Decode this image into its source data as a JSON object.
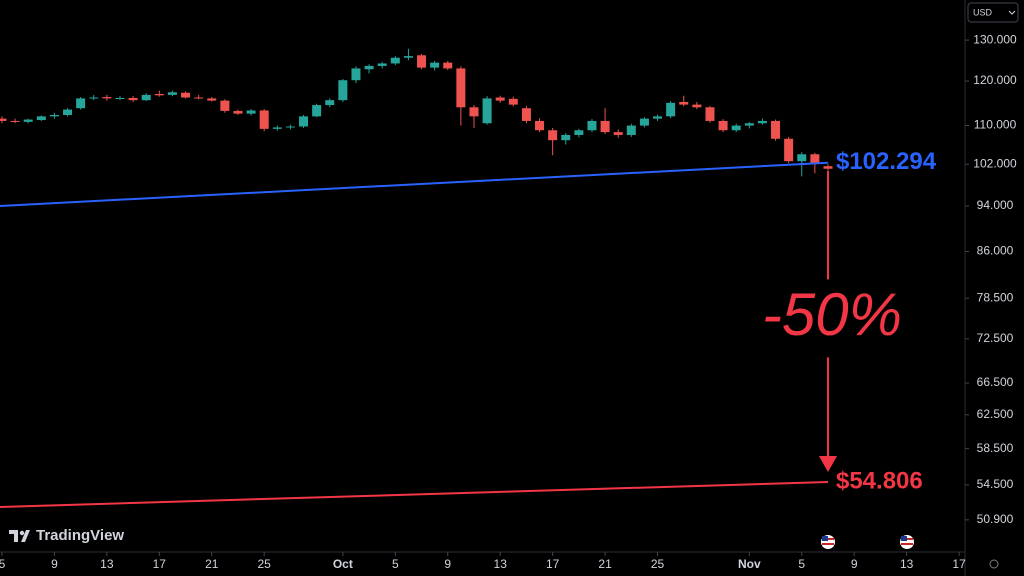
{
  "chart_data": {
    "type": "candlestick",
    "currency": "USD",
    "brand": "TradingView",
    "annotation": "-50%",
    "up_color": "#26a69a",
    "down_color": "#ef5350",
    "log_scale": true,
    "xlim": [
      -0.15,
      73.45
    ],
    "ylim": [
      47.8,
      140.6
    ],
    "xticks": [
      {
        "value": 0,
        "label": "5"
      },
      {
        "value": 4,
        "label": "9"
      },
      {
        "value": 8,
        "label": "13"
      },
      {
        "value": 12,
        "label": "17"
      },
      {
        "value": 16,
        "label": "21"
      },
      {
        "value": 20,
        "label": "25"
      },
      {
        "value": 26,
        "label": "Oct"
      },
      {
        "value": 30,
        "label": "5"
      },
      {
        "value": 34,
        "label": "9"
      },
      {
        "value": 38,
        "label": "13"
      },
      {
        "value": 42,
        "label": "17"
      },
      {
        "value": 46,
        "label": "21"
      },
      {
        "value": 50,
        "label": "25"
      },
      {
        "value": 57,
        "label": "Nov"
      },
      {
        "value": 61,
        "label": "5"
      },
      {
        "value": 65,
        "label": "9"
      },
      {
        "value": 69,
        "label": "13"
      },
      {
        "value": 73,
        "label": "17"
      }
    ],
    "yticks": [
      {
        "value": 130,
        "label": "130.000"
      },
      {
        "value": 120,
        "label": "120.000"
      },
      {
        "value": 110,
        "label": "110.000"
      },
      {
        "value": 102,
        "label": "102.000"
      },
      {
        "value": 94,
        "label": "94.000"
      },
      {
        "value": 86,
        "label": "86.000"
      },
      {
        "value": 78.5,
        "label": "78.500"
      },
      {
        "value": 72.5,
        "label": "72.500"
      },
      {
        "value": 66.5,
        "label": "66.500"
      },
      {
        "value": 62.5,
        "label": "62.500"
      },
      {
        "value": 58.5,
        "label": "58.500"
      },
      {
        "value": 54.5,
        "label": "54.500"
      },
      {
        "value": 50.9,
        "label": "50.900"
      }
    ],
    "x": [
      0,
      1,
      2,
      3,
      4,
      5,
      6,
      7,
      8,
      9,
      10,
      11,
      12,
      13,
      14,
      15,
      16,
      17,
      18,
      19,
      20,
      21,
      22,
      23,
      24,
      25,
      26,
      27,
      28,
      29,
      30,
      31,
      32,
      33,
      34,
      35,
      36,
      37,
      38,
      39,
      40,
      41,
      42,
      43,
      44,
      45,
      46,
      47,
      48,
      49,
      50,
      51,
      52,
      53,
      54,
      55,
      56,
      57,
      58,
      59,
      60,
      61,
      62,
      63
    ],
    "open": [
      111.5,
      111,
      110.8,
      111.2,
      112,
      112.3,
      113.8,
      116,
      116.3,
      116,
      116.1,
      115.6,
      117,
      116.8,
      117.3,
      116.2,
      116,
      115.5,
      113.2,
      112.6,
      113.3,
      109.3,
      109.6,
      109.8,
      112,
      114.5,
      115.6,
      120.2,
      122.8,
      123.6,
      124.2,
      125.6,
      126.2,
      123.2,
      124.4,
      123,
      114,
      110.5,
      116.2,
      115.9,
      113.8,
      111,
      109,
      106.9,
      108,
      109,
      111,
      108.6,
      108,
      110,
      111.5,
      112,
      115.2,
      114.6,
      114,
      111,
      109,
      110,
      110.5,
      111,
      107.2,
      102.6,
      104,
      101.6
    ],
    "high": [
      112,
      111.5,
      111.5,
      112.2,
      112.8,
      113.8,
      116.3,
      116.8,
      116.8,
      116.5,
      116.5,
      117.2,
      117.8,
      117.8,
      117.6,
      116.8,
      116.3,
      115.8,
      113.5,
      113.6,
      113.6,
      110,
      110.2,
      112.3,
      114.8,
      116,
      120.5,
      123.5,
      124,
      124.6,
      126,
      127.8,
      126.5,
      124.8,
      124.8,
      123.5,
      114.5,
      116.5,
      116.6,
      116.4,
      114.3,
      111.6,
      109.5,
      108.4,
      109.3,
      111.4,
      113.8,
      109.2,
      110.4,
      111.8,
      112.4,
      115.4,
      116.6,
      115.2,
      114.3,
      111.4,
      110.4,
      110.8,
      111.5,
      111.3,
      107.6,
      104.4,
      104.3,
      102
    ],
    "low": [
      110.5,
      110.5,
      110.5,
      111,
      111.5,
      112,
      113.5,
      115.6,
      115.5,
      115.6,
      115.2,
      115.4,
      116.4,
      116.5,
      116,
      115.8,
      115.3,
      112.8,
      112.3,
      112.2,
      108.8,
      108.9,
      109.2,
      109.5,
      111.8,
      114,
      115.2,
      119.5,
      121.8,
      123,
      123.8,
      125,
      122.8,
      122.5,
      122.6,
      110,
      109.5,
      110.2,
      115,
      114.2,
      110.5,
      108.6,
      103.8,
      106,
      107.5,
      108.6,
      108.2,
      107.4,
      107.6,
      109.6,
      111,
      111.6,
      114.2,
      113.6,
      110.6,
      108.6,
      108.6,
      109.4,
      110.2,
      106.8,
      102.2,
      99.6,
      100.2,
      100.8
    ],
    "close": [
      111,
      110.8,
      111.3,
      112,
      112.3,
      113.5,
      116,
      116.2,
      116,
      116.1,
      115.6,
      116.8,
      116.7,
      117.4,
      116.2,
      116,
      115.5,
      113.2,
      112.6,
      113.3,
      109.3,
      109.6,
      109.8,
      112,
      114.5,
      115.6,
      120.2,
      123,
      123.6,
      124.2,
      125.6,
      126,
      123.2,
      124.4,
      123,
      114,
      112,
      116,
      115.5,
      114.6,
      111,
      109,
      106.9,
      108,
      109,
      111,
      108.6,
      108,
      110,
      111.5,
      112,
      115,
      114.6,
      114,
      111,
      109,
      110,
      110.5,
      111,
      107.2,
      102.6,
      104,
      102.2,
      101.1
    ],
    "lines": [
      {
        "color": "#2962ff",
        "x": [
          -0.15,
          63
        ],
        "values": [
          94.0,
          102.294
        ],
        "value_labels": [
          null,
          "$102.294"
        ]
      },
      {
        "color": "#f23645",
        "x": [
          -0.15,
          63
        ],
        "values": [
          52.2,
          54.806
        ],
        "value_labels": [
          null,
          "$54.806"
        ]
      }
    ]
  }
}
